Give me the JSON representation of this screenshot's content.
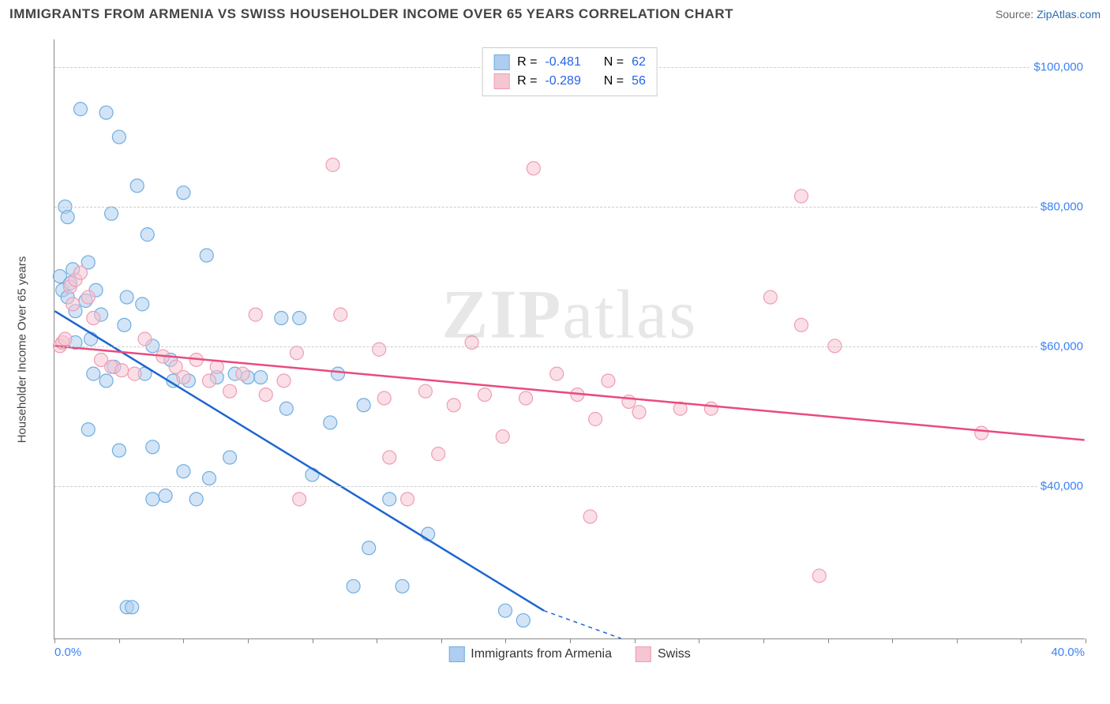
{
  "header": {
    "title": "IMMIGRANTS FROM ARMENIA VS SWISS HOUSEHOLDER INCOME OVER 65 YEARS CORRELATION CHART",
    "source_prefix": "Source: ",
    "source_link": "ZipAtlas.com"
  },
  "watermark": {
    "z": "ZIP",
    "rest": "atlas"
  },
  "chart": {
    "type": "scatter",
    "ylabel": "Householder Income Over 65 years",
    "xlim": [
      0,
      40
    ],
    "ylim": [
      18000,
      104000
    ],
    "x_min_label": "0.0%",
    "x_max_label": "40.0%",
    "x_tick_step": 2.5,
    "y_ticks": [
      40000,
      60000,
      80000,
      100000
    ],
    "y_tick_labels": [
      "$40,000",
      "$60,000",
      "$80,000",
      "$100,000"
    ],
    "grid_color": "#cccccc",
    "axis_color": "#888888",
    "background": "#ffffff",
    "marker_radius": 8.5,
    "marker_opacity": 0.55,
    "line_width": 2.5,
    "series": [
      {
        "name": "Immigrants from Armenia",
        "color_fill": "#aecdf0",
        "color_stroke": "#6faee0",
        "line_color": "#1e66d0",
        "R": "-0.481",
        "N": "62",
        "regression": {
          "x1": 0,
          "y1": 65000,
          "x2": 19,
          "y2": 22000
        },
        "dash_ext": {
          "x1": 19,
          "y1": 22000,
          "x2": 22,
          "y2": 18000
        },
        "points": [
          [
            0.2,
            70000
          ],
          [
            0.3,
            68000
          ],
          [
            0.4,
            80000
          ],
          [
            0.5,
            78500
          ],
          [
            0.5,
            67000
          ],
          [
            0.6,
            69000
          ],
          [
            0.7,
            71000
          ],
          [
            0.8,
            65000
          ],
          [
            0.8,
            60500
          ],
          [
            1.0,
            94000
          ],
          [
            1.2,
            66500
          ],
          [
            1.3,
            72000
          ],
          [
            1.3,
            48000
          ],
          [
            1.4,
            61000
          ],
          [
            1.5,
            56000
          ],
          [
            1.6,
            68000
          ],
          [
            1.8,
            64500
          ],
          [
            2.0,
            93500
          ],
          [
            2.0,
            55000
          ],
          [
            2.2,
            79000
          ],
          [
            2.3,
            57000
          ],
          [
            2.5,
            90000
          ],
          [
            2.5,
            45000
          ],
          [
            2.7,
            63000
          ],
          [
            2.8,
            67000
          ],
          [
            2.8,
            22500
          ],
          [
            3.0,
            22500
          ],
          [
            3.2,
            83000
          ],
          [
            3.4,
            66000
          ],
          [
            3.5,
            56000
          ],
          [
            3.6,
            76000
          ],
          [
            3.8,
            38000
          ],
          [
            3.8,
            60000
          ],
          [
            3.8,
            45500
          ],
          [
            4.3,
            38500
          ],
          [
            4.5,
            58000
          ],
          [
            4.6,
            55000
          ],
          [
            5.0,
            82000
          ],
          [
            5.0,
            42000
          ],
          [
            5.2,
            55000
          ],
          [
            5.5,
            38000
          ],
          [
            5.9,
            73000
          ],
          [
            6.0,
            41000
          ],
          [
            6.3,
            55500
          ],
          [
            6.8,
            44000
          ],
          [
            7.0,
            56000
          ],
          [
            7.5,
            55500
          ],
          [
            8.0,
            55500
          ],
          [
            8.8,
            64000
          ],
          [
            9.0,
            51000
          ],
          [
            9.5,
            64000
          ],
          [
            10.0,
            41500
          ],
          [
            10.7,
            49000
          ],
          [
            11.0,
            56000
          ],
          [
            11.6,
            25500
          ],
          [
            12.0,
            51500
          ],
          [
            12.2,
            31000
          ],
          [
            13.0,
            38000
          ],
          [
            13.5,
            25500
          ],
          [
            14.5,
            33000
          ],
          [
            17.5,
            22000
          ],
          [
            18.2,
            20600
          ]
        ]
      },
      {
        "name": "Swiss",
        "color_fill": "#f6c5d2",
        "color_stroke": "#ef9db5",
        "line_color": "#e94b7e",
        "R": "-0.289",
        "N": "56",
        "regression": {
          "x1": 0,
          "y1": 60000,
          "x2": 40,
          "y2": 46500
        },
        "points": [
          [
            0.2,
            60000
          ],
          [
            0.3,
            60500
          ],
          [
            0.4,
            61000
          ],
          [
            0.6,
            68500
          ],
          [
            0.7,
            66000
          ],
          [
            0.8,
            69500
          ],
          [
            1.0,
            70500
          ],
          [
            1.3,
            67000
          ],
          [
            1.5,
            64000
          ],
          [
            1.8,
            58000
          ],
          [
            2.2,
            57000
          ],
          [
            2.6,
            56500
          ],
          [
            3.1,
            56000
          ],
          [
            3.5,
            61000
          ],
          [
            4.2,
            58500
          ],
          [
            4.7,
            57000
          ],
          [
            5.0,
            55500
          ],
          [
            5.5,
            58000
          ],
          [
            6.0,
            55000
          ],
          [
            6.3,
            57000
          ],
          [
            6.8,
            53500
          ],
          [
            7.3,
            56000
          ],
          [
            7.8,
            64500
          ],
          [
            8.2,
            53000
          ],
          [
            8.9,
            55000
          ],
          [
            9.4,
            59000
          ],
          [
            9.5,
            38000
          ],
          [
            10.8,
            86000
          ],
          [
            11.1,
            64500
          ],
          [
            12.6,
            59500
          ],
          [
            12.8,
            52500
          ],
          [
            13.0,
            44000
          ],
          [
            13.7,
            38000
          ],
          [
            14.4,
            53500
          ],
          [
            14.9,
            44500
          ],
          [
            15.5,
            51500
          ],
          [
            16.2,
            60500
          ],
          [
            16.7,
            53000
          ],
          [
            17.4,
            47000
          ],
          [
            18.3,
            52500
          ],
          [
            18.6,
            85500
          ],
          [
            19.5,
            56000
          ],
          [
            20.3,
            53000
          ],
          [
            20.8,
            35500
          ],
          [
            21.0,
            49500
          ],
          [
            21.5,
            55000
          ],
          [
            22.3,
            52000
          ],
          [
            22.7,
            50500
          ],
          [
            24.3,
            51000
          ],
          [
            25.5,
            51000
          ],
          [
            27.8,
            67000
          ],
          [
            29.0,
            81500
          ],
          [
            29.0,
            63000
          ],
          [
            29.7,
            27000
          ],
          [
            30.3,
            60000
          ],
          [
            36.0,
            47500
          ]
        ]
      }
    ],
    "legend_box": {
      "R_label": "R =",
      "N_label": "N ="
    }
  }
}
